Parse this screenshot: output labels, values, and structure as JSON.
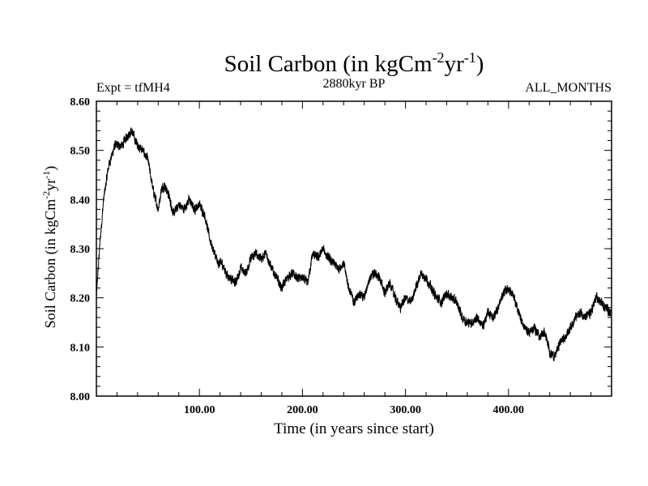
{
  "chart_data": {
    "type": "line",
    "title": "Soil Carbon (in kgCm",
    "title_sup1": "-2",
    "title_mid": "yr",
    "title_sup2": "-1",
    "title_end": ")",
    "subtitle_left": "Expt = tfMH4",
    "subtitle_center": "2880kyr BP",
    "subtitle_right": "ALL_MONTHS",
    "xlabel": "Time (in years since start)",
    "ylabel": "Soil Carbon (in kgCm",
    "ylabel_sup1": "-2",
    "ylabel_mid": "yr",
    "ylabel_sup2": "-1",
    "ylabel_end": ")",
    "xlim": [
      0,
      500
    ],
    "ylim": [
      8.0,
      8.6
    ],
    "x_ticks": [
      100,
      200,
      300,
      400
    ],
    "x_tick_labels": [
      "100.00",
      "200.00",
      "300.00",
      "400.00"
    ],
    "y_ticks": [
      8.0,
      8.1,
      8.2,
      8.3,
      8.4,
      8.5,
      8.6
    ],
    "y_tick_labels": [
      "8.00",
      "8.10",
      "8.20",
      "8.30",
      "8.40",
      "8.50",
      "8.60"
    ],
    "series": [
      {
        "name": "Soil Carbon",
        "color": "#000000",
        "noise_amplitude": 0.009,
        "x": [
          0,
          3,
          7,
          12,
          18,
          25,
          30,
          34,
          40,
          45,
          50,
          55,
          60,
          63,
          66,
          70,
          75,
          80,
          85,
          90,
          95,
          100,
          105,
          110,
          113,
          118,
          122,
          126,
          130,
          135,
          140,
          145,
          150,
          155,
          160,
          165,
          170,
          175,
          180,
          185,
          190,
          195,
          200,
          205,
          210,
          215,
          220,
          225,
          230,
          235,
          240,
          245,
          250,
          255,
          260,
          265,
          270,
          275,
          280,
          285,
          290,
          295,
          300,
          305,
          310,
          315,
          320,
          325,
          330,
          335,
          340,
          345,
          350,
          355,
          360,
          365,
          370,
          375,
          380,
          385,
          390,
          395,
          400,
          405,
          410,
          415,
          420,
          425,
          430,
          435,
          440,
          445,
          450,
          455,
          460,
          465,
          470,
          475,
          480,
          485,
          490,
          495,
          499
        ],
        "y": [
          8.2,
          8.3,
          8.4,
          8.47,
          8.51,
          8.51,
          8.53,
          8.54,
          8.51,
          8.5,
          8.48,
          8.42,
          8.38,
          8.42,
          8.43,
          8.41,
          8.37,
          8.39,
          8.38,
          8.4,
          8.38,
          8.39,
          8.37,
          8.32,
          8.3,
          8.27,
          8.27,
          8.25,
          8.24,
          8.23,
          8.26,
          8.25,
          8.28,
          8.29,
          8.28,
          8.29,
          8.26,
          8.24,
          8.22,
          8.24,
          8.25,
          8.24,
          8.24,
          8.23,
          8.29,
          8.28,
          8.3,
          8.28,
          8.27,
          8.26,
          8.27,
          8.22,
          8.19,
          8.21,
          8.2,
          8.24,
          8.25,
          8.24,
          8.21,
          8.23,
          8.2,
          8.18,
          8.2,
          8.19,
          8.22,
          8.25,
          8.24,
          8.22,
          8.2,
          8.19,
          8.21,
          8.2,
          8.19,
          8.16,
          8.15,
          8.15,
          8.16,
          8.14,
          8.17,
          8.16,
          8.18,
          8.21,
          8.22,
          8.2,
          8.17,
          8.14,
          8.13,
          8.14,
          8.12,
          8.13,
          8.09,
          8.08,
          8.11,
          8.12,
          8.14,
          8.16,
          8.17,
          8.16,
          8.17,
          8.2,
          8.19,
          8.18,
          8.17
        ]
      }
    ]
  }
}
